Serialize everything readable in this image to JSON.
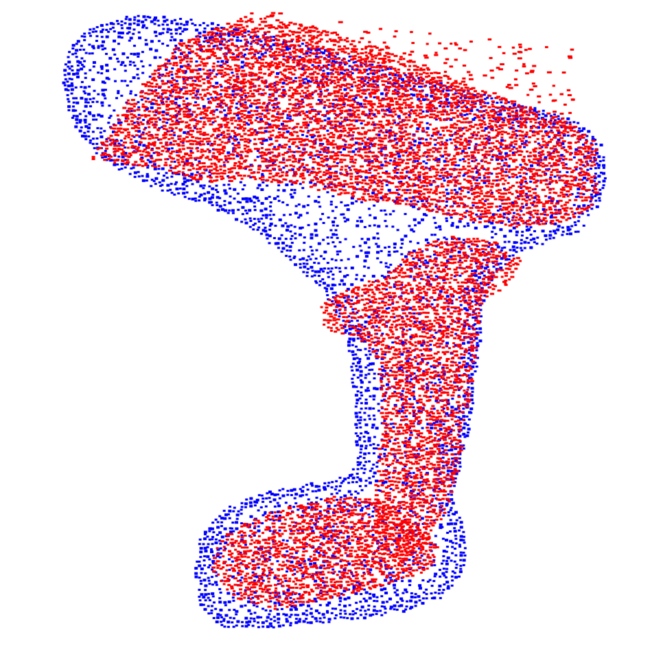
{
  "scene": {
    "background_color": "#ffffff",
    "subject": "drill",
    "point_clouds": [
      {
        "role": "reference",
        "color": "#0000ff"
      },
      {
        "role": "overlay",
        "color": "#ff0000"
      }
    ]
  }
}
